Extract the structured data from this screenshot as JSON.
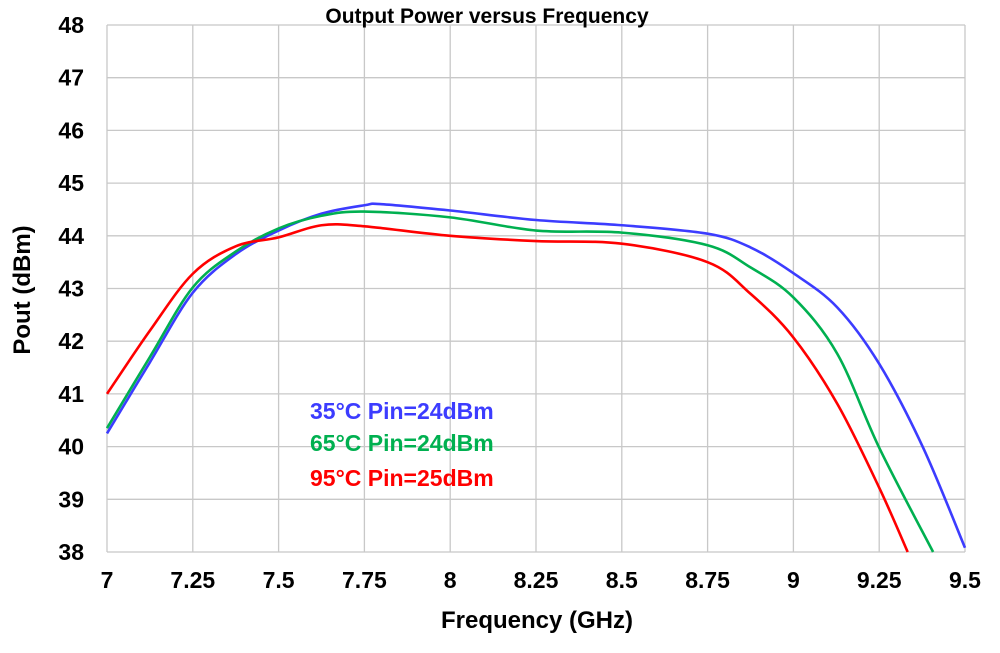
{
  "chart_data": {
    "type": "line",
    "title": "Output Power versus Frequency",
    "xlabel": "Frequency (GHz)",
    "ylabel": "Pout (dBm)",
    "xlim": [
      7,
      9.5
    ],
    "ylim": [
      38,
      48
    ],
    "grid": true,
    "legend_placement": "center-left, inside plot",
    "x_ticks": [
      "7",
      "7.25",
      "7.5",
      "7.75",
      "8",
      "8.25",
      "8.5",
      "8.75",
      "9",
      "9.25",
      "9.5"
    ],
    "y_ticks": [
      "38",
      "39",
      "40",
      "41",
      "42",
      "43",
      "44",
      "45",
      "46",
      "47",
      "48"
    ],
    "series": [
      {
        "name": "35°C Pin=24dBm",
        "color": "#3c3cff",
        "x": [
          7.0,
          7.125,
          7.25,
          7.375,
          7.5,
          7.625,
          7.75,
          7.8,
          8.0,
          8.25,
          8.5,
          8.75,
          8.875,
          9.0,
          9.128,
          9.25,
          9.378,
          9.5
        ],
        "y": [
          40.25,
          41.6,
          42.92,
          43.65,
          44.1,
          44.42,
          44.58,
          44.6,
          44.48,
          44.3,
          44.2,
          44.04,
          43.78,
          43.29,
          42.64,
          41.57,
          39.98,
          38.08
        ]
      },
      {
        "name": "65°C Pin=24dBm",
        "color": "#00b050",
        "x": [
          7.0,
          7.125,
          7.25,
          7.375,
          7.5,
          7.625,
          7.75,
          8.0,
          8.25,
          8.5,
          8.75,
          8.875,
          9.0,
          9.128,
          9.25,
          9.407
        ],
        "y": [
          40.35,
          41.7,
          43.02,
          43.7,
          44.14,
          44.38,
          44.46,
          44.35,
          44.1,
          44.06,
          43.82,
          43.4,
          42.83,
          41.76,
          39.98,
          38.0
        ]
      },
      {
        "name": "95°C Pin=25dBm",
        "color": "#ff0000",
        "x": [
          7.0,
          7.125,
          7.25,
          7.375,
          7.5,
          7.625,
          7.75,
          8.0,
          8.25,
          8.5,
          8.75,
          8.875,
          9.0,
          9.128,
          9.25,
          9.333
        ],
        "y": [
          41.0,
          42.2,
          43.28,
          43.8,
          43.97,
          44.2,
          44.18,
          44.0,
          43.9,
          43.85,
          43.5,
          42.9,
          42.07,
          40.81,
          39.22,
          38.0
        ]
      }
    ]
  }
}
